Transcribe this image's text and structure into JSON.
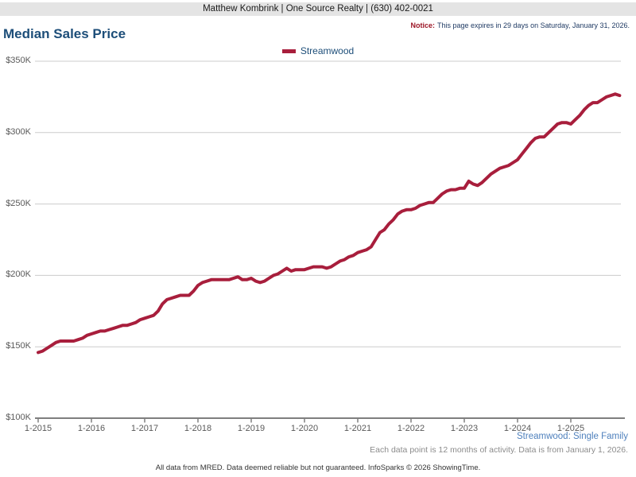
{
  "header": {
    "bar_text": "Matthew Kombrink | One Source Realty | (630) 402-0021"
  },
  "notice": {
    "label": "Notice:",
    "text": "This page expires in 29 days on Saturday, January 31, 2026."
  },
  "page_title": "Median Sales Price",
  "legend": {
    "label": "Streamwood",
    "color": "#a81e3c"
  },
  "chart_data": {
    "type": "line",
    "title": "Median Sales Price",
    "x_unit": "month",
    "x_start": "2015-01",
    "x_end": "2025-12",
    "x_tick_labels": [
      "1-2015",
      "1-2016",
      "1-2017",
      "1-2018",
      "1-2019",
      "1-2020",
      "1-2021",
      "1-2022",
      "1-2023",
      "1-2024",
      "1-2025"
    ],
    "y_ticks": [
      100,
      150,
      200,
      250,
      300,
      350
    ],
    "y_tick_labels": [
      "$100K",
      "$150K",
      "$200K",
      "$250K",
      "$300K",
      "$350K"
    ],
    "ylim": [
      100,
      350
    ],
    "values_unit": "USD thousands",
    "grid": true,
    "legend_position": "top-center",
    "series": [
      {
        "name": "Streamwood",
        "color": "#a81e3c",
        "values": [
          146,
          147,
          149,
          151,
          153,
          154,
          154,
          154,
          154,
          155,
          156,
          158,
          159,
          160,
          161,
          161,
          162,
          163,
          164,
          165,
          165,
          166,
          167,
          169,
          170,
          171,
          172,
          175,
          180,
          183,
          184,
          185,
          186,
          186,
          186,
          189,
          193,
          195,
          196,
          197,
          197,
          197,
          197,
          197,
          198,
          199,
          197,
          197,
          198,
          196,
          195,
          196,
          198,
          200,
          201,
          203,
          205,
          203,
          204,
          204,
          204,
          205,
          206,
          206,
          206,
          205,
          206,
          208,
          210,
          211,
          213,
          214,
          216,
          217,
          218,
          220,
          225,
          230,
          232,
          236,
          239,
          243,
          245,
          246,
          246,
          247,
          249,
          250,
          251,
          251,
          254,
          257,
          259,
          260,
          260,
          261,
          261,
          266,
          264,
          263,
          265,
          268,
          271,
          273,
          275,
          276,
          277,
          279,
          281,
          285,
          289,
          293,
          296,
          297,
          297,
          300,
          303,
          306,
          307,
          307,
          306,
          309,
          312,
          316,
          319,
          321,
          321,
          323,
          325,
          326,
          327,
          326
        ]
      }
    ]
  },
  "footer": {
    "series_link": "Streamwood: Single Family",
    "data_note": "Each data point is 12 months of activity. Data is from January 1, 2026.",
    "disclaimer": "All data from MRED. Data deemed reliable but not guaranteed. InfoSparks © 2026 ShowingTime."
  },
  "colors": {
    "accent_line": "#a81e3c",
    "title_blue": "#1d4e79",
    "notice_red": "#9c1626",
    "notice_navy": "#1f3a63",
    "link_blue": "#4f81bd",
    "gridline": "#cccccc",
    "axis": "#7f7f7f",
    "topbar_bg": "#e4e4e4"
  }
}
